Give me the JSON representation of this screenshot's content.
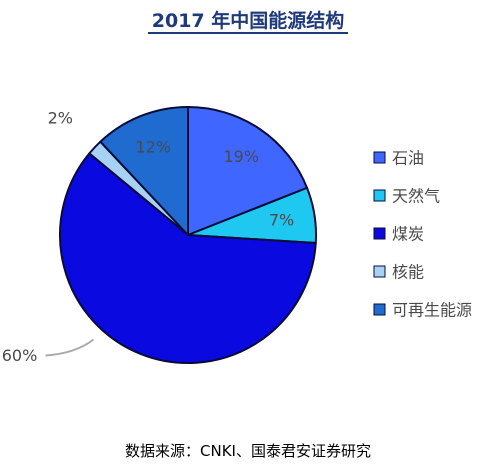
{
  "chart_data": {
    "type": "pie",
    "title": "2017 年中国能源结构",
    "slices": [
      {
        "label": "石油",
        "value": 19,
        "value_label": "19%",
        "color": "#3f66ff"
      },
      {
        "label": "天然气",
        "value": 7,
        "value_label": "7%",
        "color": "#1ec8f0"
      },
      {
        "label": "煤炭",
        "value": 60,
        "value_label": "60%",
        "color": "#0a0ae0"
      },
      {
        "label": "核能",
        "value": 2,
        "value_label": "2%",
        "color": "#a8d2f5"
      },
      {
        "label": "可再生能源",
        "value": 12,
        "value_label": "12%",
        "color": "#1f6bd0"
      }
    ],
    "start_angle_deg": 0,
    "direction": "clockwise",
    "legend_position": "right"
  },
  "footer": {
    "source": "数据来源：CNKI、国泰君安证券研究"
  }
}
